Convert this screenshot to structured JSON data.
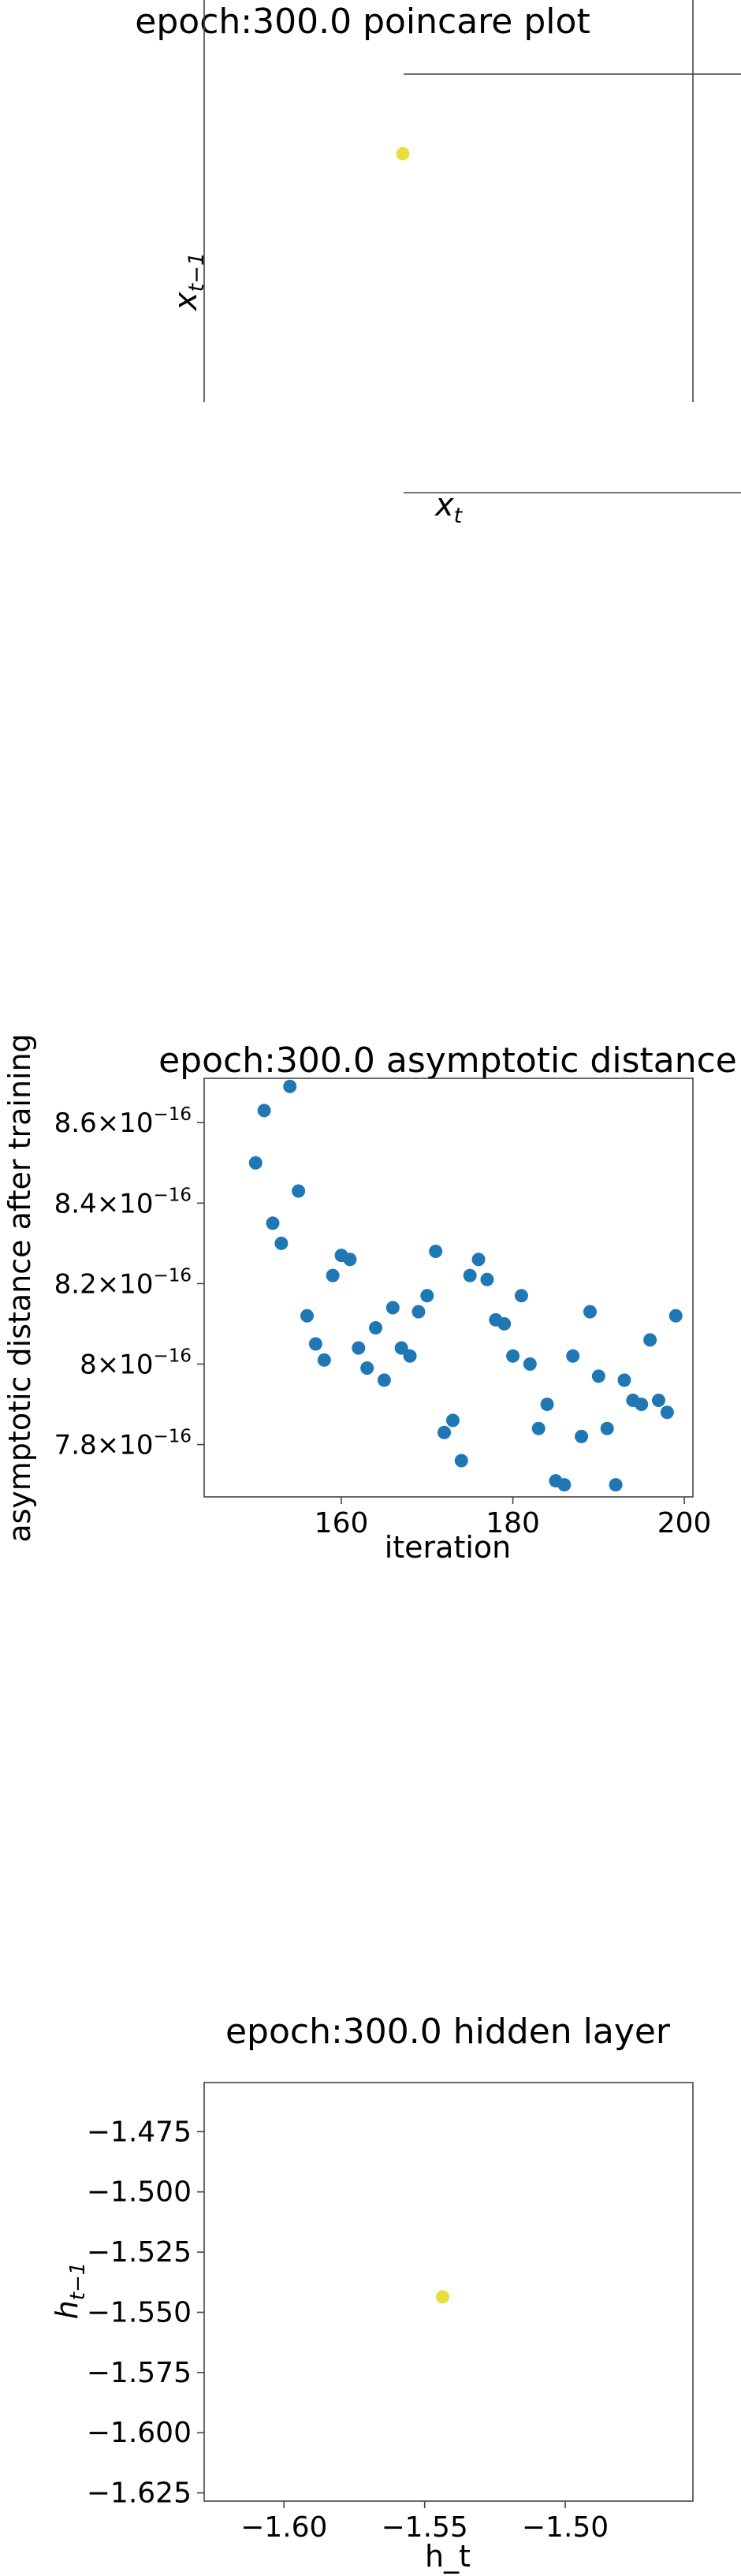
{
  "chart_data": [
    {
      "type": "scatter",
      "title": "epoch:300.0 poincare plot",
      "xlabel": "x_t",
      "ylabel": "x_{t−1}",
      "points": [
        [
          0.0,
          0.0
        ]
      ],
      "point_color": "#e8de3a",
      "grid": false,
      "axes": "center spines (left and bottom axes through origin)"
    },
    {
      "type": "scatter",
      "title": "epoch:300.0 asymptotic distance",
      "xlabel": "iteration",
      "ylabel": "asymptotic distance after training",
      "xlim": [
        144,
        201
      ],
      "ylim": [
        7.67e-16,
        8.71e-16
      ],
      "x_ticks": [
        {
          "v": 160,
          "label": "160"
        },
        {
          "v": 180,
          "label": "180"
        },
        {
          "v": 200,
          "label": "200"
        }
      ],
      "y_ticks": [
        {
          "v": 7.8e-16,
          "mant": "7.8",
          "exp": "−16"
        },
        {
          "v": 8e-16,
          "mant": "8",
          "exp": "−16"
        },
        {
          "v": 8.2e-16,
          "mant": "8.2",
          "exp": "−16"
        },
        {
          "v": 8.4e-16,
          "mant": "8.4",
          "exp": "−16"
        },
        {
          "v": 8.6e-16,
          "mant": "8.6",
          "exp": "−16"
        }
      ],
      "point_color": "#1f77b4",
      "grid": false,
      "x": [
        150,
        151,
        152,
        153,
        154,
        155,
        156,
        157,
        158,
        159,
        160,
        161,
        162,
        163,
        164,
        165,
        166,
        167,
        168,
        169,
        170,
        171,
        172,
        173,
        174,
        175,
        176,
        177,
        178,
        179,
        180,
        181,
        182,
        183,
        184,
        185,
        186,
        187,
        188,
        189,
        190,
        191,
        192,
        193,
        194,
        195,
        196,
        197,
        198,
        199
      ],
      "y": [
        8.5e-16,
        8.63e-16,
        8.35e-16,
        8.3e-16,
        8.69e-16,
        8.43e-16,
        8.12e-16,
        8.05e-16,
        8.01e-16,
        8.22e-16,
        8.27e-16,
        8.26e-16,
        8.04e-16,
        7.99e-16,
        8.09e-16,
        7.96e-16,
        8.14e-16,
        8.04e-16,
        8.02e-16,
        8.13e-16,
        8.17e-16,
        8.28e-16,
        7.83e-16,
        7.86e-16,
        7.76e-16,
        8.22e-16,
        8.26e-16,
        8.21e-16,
        8.11e-16,
        8.1e-16,
        8.02e-16,
        8.17e-16,
        8e-16,
        7.84e-16,
        7.9e-16,
        7.71e-16,
        7.7e-16,
        8.02e-16,
        7.82e-16,
        8.13e-16,
        7.97e-16,
        7.84e-16,
        7.7e-16,
        7.96e-16,
        7.91e-16,
        7.9e-16,
        8.06e-16,
        7.91e-16,
        7.88e-16,
        8.12e-16
      ]
    },
    {
      "type": "scatter",
      "title": "epoch:300.0 hidden layer",
      "xlabel": "h_t",
      "ylabel": "h_{t−1}",
      "xlim": [
        -1.6284,
        -1.4546
      ],
      "ylim": [
        -1.6284,
        -1.4546
      ],
      "x_ticks": [
        {
          "v": -1.6,
          "label": "−1.60"
        },
        {
          "v": -1.55,
          "label": "−1.55"
        },
        {
          "v": -1.5,
          "label": "−1.50"
        }
      ],
      "y_ticks": [
        {
          "v": -1.625,
          "label": "−1.625"
        },
        {
          "v": -1.6,
          "label": "−1.600"
        },
        {
          "v": -1.575,
          "label": "−1.575"
        },
        {
          "v": -1.55,
          "label": "−1.550"
        },
        {
          "v": -1.525,
          "label": "−1.525"
        },
        {
          "v": -1.5,
          "label": "−1.500"
        },
        {
          "v": -1.475,
          "label": "−1.475"
        }
      ],
      "points": [
        [
          -1.5436,
          -1.5436
        ]
      ],
      "point_color": "#e8de3a",
      "grid": false
    }
  ]
}
